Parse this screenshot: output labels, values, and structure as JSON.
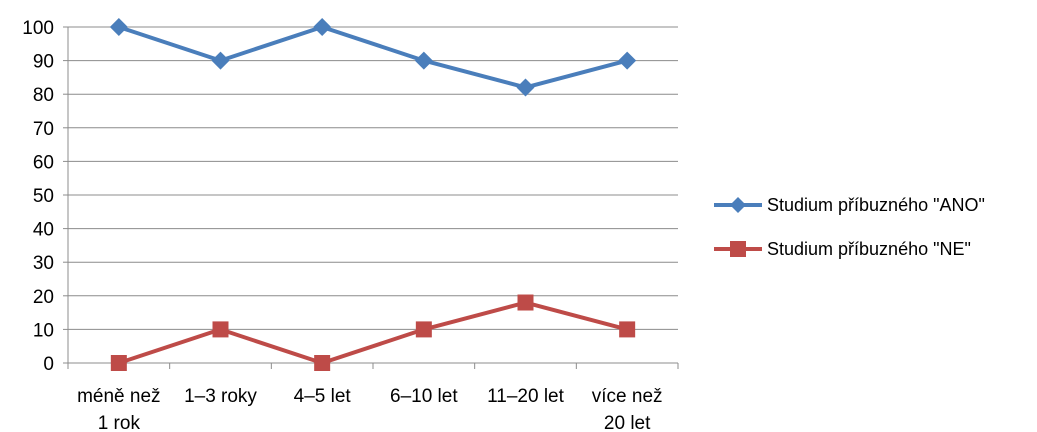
{
  "chart_data": {
    "type": "line",
    "categories": [
      [
        "méně než",
        "1 rok"
      ],
      [
        "1–3 roky"
      ],
      [
        "4–5 let"
      ],
      [
        "6–10 let"
      ],
      [
        "11–20 let"
      ],
      [
        "více než",
        "20 let"
      ]
    ],
    "ylim": [
      0,
      100
    ],
    "yticks": [
      "0",
      "10",
      "20",
      "30",
      "40",
      "50",
      "60",
      "70",
      "80",
      "90",
      "100"
    ],
    "grid": true,
    "legend_position": "right",
    "series": [
      {
        "name": "Studium příbuzného \"ANO\"",
        "values": [
          100,
          90,
          100,
          90,
          82,
          90
        ],
        "color": "#4a7ebb",
        "marker": "diamond"
      },
      {
        "name": "Studium příbuzného \"NE\"",
        "values": [
          0,
          10,
          0,
          10,
          18,
          10
        ],
        "color": "#be4b48",
        "marker": "square"
      }
    ]
  }
}
